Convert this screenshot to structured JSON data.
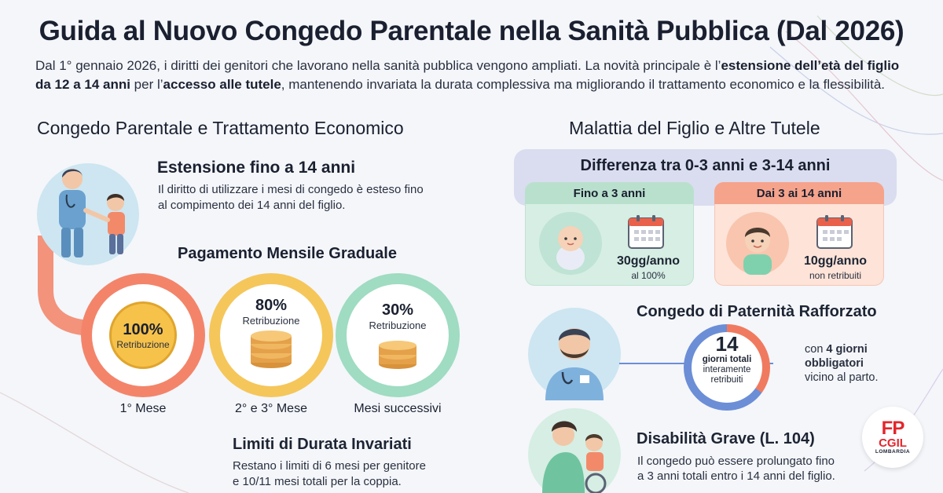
{
  "header": {
    "title": "Guida al Nuovo Congedo Parentale nella Sanità Pubblica (Dal 2026)",
    "intro_part1": "Dal 1° gennaio 2026, i diritti dei genitori che lavorano nella sanità pubblica vengono ampliati. La novità principale è l’",
    "intro_bold1": "estensione dell’età del figlio da 12 a 14 anni",
    "intro_part2": " per l’",
    "intro_bold2": "accesso alle tutele",
    "intro_part3": ", mantenendo invariata la durata complessiva ma migliorando il trattamento economico e la flessibilità."
  },
  "left": {
    "section_title": "Congedo Parentale e Trattamento Economico",
    "extension": {
      "title": "Estensione fino a 14 anni",
      "text_line1": "Il diritto di utilizzare i mesi di congedo è esteso fino",
      "text_line2": "al compimento dei 14 anni del figlio."
    },
    "payment_title": "Pagamento Mensile Graduale",
    "payments": [
      {
        "pct": "100%",
        "sub": "Retribuzione",
        "label": "1° Mese"
      },
      {
        "pct": "80%",
        "sub": "Retribuzione",
        "label": "2° e 3° Mese"
      },
      {
        "pct": "30%",
        "sub": "Retribuzione",
        "label": "Mesi successivi"
      }
    ],
    "limits": {
      "title": "Limiti di Durata Invariati",
      "text_line1": "Restano i limiti di 6 mesi per genitore",
      "text_line2": "e 10/11 mesi totali per la coppia."
    }
  },
  "right": {
    "section_title": "Malattia del Figlio e Altre Tutele",
    "diff_title": "Differenza tra 0-3 anni e 3-14 anni",
    "under3": {
      "head": "Fino a 3 anni",
      "value": "30gg/anno",
      "note": "al 100%"
    },
    "over3": {
      "head": "Dai 3 ai 14 anni",
      "value": "10gg/anno",
      "note": "non retribuiti"
    },
    "paternity": {
      "title": "Congedo di Paternità Rafforzato",
      "days": "14",
      "line1": "giorni totali",
      "line2": "interamente",
      "line3": "retribuiti",
      "side_pre": "con ",
      "side_bold_line1": "4 giorni",
      "side_bold_line2": "obbligatori",
      "side_line3": "vicino al parto."
    },
    "disability": {
      "title": "Disabilità Grave (L. 104)",
      "text_line1": "Il congedo può essere prolungato fino",
      "text_line2": "a 3 anni totali entro i 14 anni del figlio."
    }
  },
  "logo": {
    "fp": "FP",
    "cgil": "CGIL",
    "region": "LOMBARDIA"
  },
  "colors": {
    "coral": "#f07a5f",
    "gold": "#f2c94c",
    "mint": "#7fd1ae",
    "blue": "#6b8ed6",
    "brand_red": "#e3262c"
  }
}
